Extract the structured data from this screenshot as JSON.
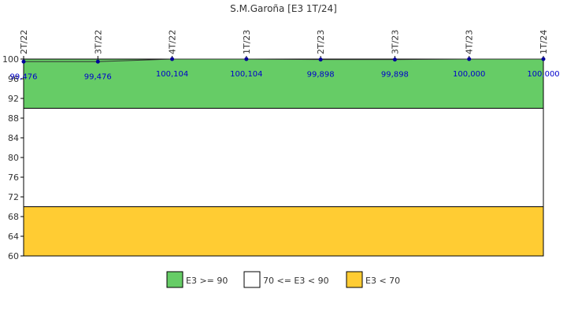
{
  "chart_data": {
    "type": "line",
    "title": "S.M.Garoña [E3 1T/24]",
    "categories": [
      "2T/22",
      "3T/22",
      "4T/22",
      "1T/23",
      "2T/23",
      "3T/23",
      "4T/23",
      "1T/24"
    ],
    "series": [
      {
        "values": [
          99.476,
          99.476,
          100.104,
          100.104,
          99.898,
          99.898,
          100.0,
          100.0
        ],
        "labels": [
          "99,476",
          "99,476",
          "100,104",
          "100,104",
          "99,898",
          "99,898",
          "100,000",
          "100,000"
        ],
        "color": "#000099"
      }
    ],
    "ylim": [
      60,
      100
    ],
    "yticks": [
      "60",
      "64",
      "68",
      "72",
      "76",
      "80",
      "84",
      "88",
      "92",
      "96",
      "100"
    ],
    "bands": [
      {
        "from": 90,
        "to": 100,
        "color": "#66cc66",
        "label": "E3 >= 90"
      },
      {
        "from": 70,
        "to": 90,
        "color": "#ffffff",
        "label": "70 <= E3 < 90"
      },
      {
        "from": 60,
        "to": 70,
        "color": "#ffcc33",
        "label": "E3 < 70"
      }
    ],
    "legend_position": "bottom",
    "grid": false
  }
}
